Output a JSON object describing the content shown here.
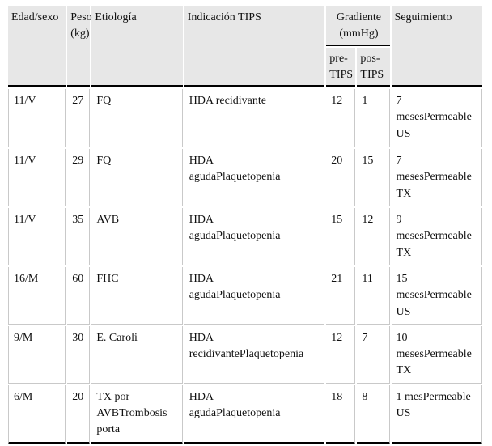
{
  "table": {
    "header": {
      "col_edad_sexo": "Edad/sexo",
      "col_peso": "Peso\n(kg)",
      "col_etiologia": "Etiología",
      "col_indicacion": "Indicación TIPS",
      "col_gradiente": "Gradiente\n(mmHg)",
      "col_pre_tips": "pre-\nTIPS",
      "col_pos_tips": "pos-\nTIPS",
      "col_seguimiento": "Seguimiento"
    },
    "rows": [
      {
        "edad_sexo": "11/V",
        "peso": "27",
        "etiologia": "FQ",
        "indicacion": "HDA recidivante",
        "pre_tips": "12",
        "pos_tips": "1",
        "seguimiento": "7\nmesesPermeable\nUS"
      },
      {
        "edad_sexo": "11/V",
        "peso": "29",
        "etiologia": "FQ",
        "indicacion": "HDA\nagudaPlaquetopenia",
        "pre_tips": "20",
        "pos_tips": "15",
        "seguimiento": "7\nmesesPermeable\nTX"
      },
      {
        "edad_sexo": "11/V",
        "peso": "35",
        "etiologia": "AVB",
        "indicacion": "HDA\nagudaPlaquetopenia",
        "pre_tips": "15",
        "pos_tips": "12",
        "seguimiento": "9\nmesesPermeable\nTX"
      },
      {
        "edad_sexo": "16/M",
        "peso": "60",
        "etiologia": "FHC",
        "indicacion": "HDA\nagudaPlaquetopenia",
        "pre_tips": "21",
        "pos_tips": "11",
        "seguimiento": "15\nmesesPermeable\nUS"
      },
      {
        "edad_sexo": "9/M",
        "peso": "30",
        "etiologia": "E. Caroli",
        "indicacion": "HDA\nrecidivantePlaquetopenia",
        "pre_tips": "12",
        "pos_tips": "7",
        "seguimiento": "10\nmesesPermeable\nTX"
      },
      {
        "edad_sexo": "6/M",
        "peso": "20",
        "etiologia": "TX por\nAVBTrombosis\nporta",
        "indicacion": "HDA\nagudaPlaquetopenia",
        "pre_tips": "18",
        "pos_tips": "8",
        "seguimiento": "1 mesPermeable\nUS"
      }
    ],
    "colors": {
      "header_bg": "#e7e7e7",
      "grid_line": "#c9c9c9",
      "rule_line": "#000000"
    }
  }
}
